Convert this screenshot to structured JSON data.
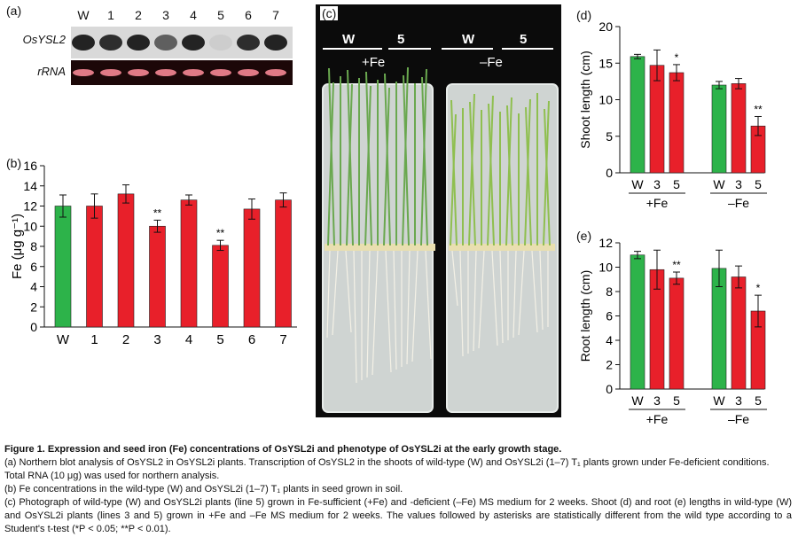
{
  "panel_a": {
    "label": "(a)",
    "lanes": [
      "W",
      "1",
      "2",
      "3",
      "4",
      "5",
      "6",
      "7"
    ],
    "row_labels": [
      "OsYSL2",
      "rRNA"
    ],
    "osysl2_band_intensity": [
      0.9,
      0.85,
      0.9,
      0.6,
      0.9,
      0.05,
      0.85,
      0.9
    ]
  },
  "panel_c": {
    "label": "(c)",
    "top_labels": [
      "W",
      "5",
      "W",
      "5"
    ],
    "conditions": [
      "+Fe",
      "–Fe"
    ]
  },
  "colors": {
    "wild_type": "#2db34a",
    "mutant": "#e8202a"
  },
  "chart_data": [
    {
      "id": "b",
      "label": "(b)",
      "type": "bar",
      "categories": [
        "W",
        "1",
        "2",
        "3",
        "4",
        "5",
        "6",
        "7"
      ],
      "values": [
        12.0,
        12.0,
        13.2,
        10.0,
        12.6,
        8.1,
        11.7,
        12.6
      ],
      "errors": [
        1.1,
        1.2,
        0.9,
        0.6,
        0.5,
        0.5,
        1.0,
        0.7
      ],
      "significance": [
        "",
        "",
        "",
        "**",
        "",
        "**",
        "",
        ""
      ],
      "ylabel": "Fe (μg g⁻¹)",
      "ylim": [
        0,
        16
      ],
      "yticks": [
        "0",
        "2",
        "4",
        "6",
        "8",
        "10",
        "12",
        "14",
        "16"
      ]
    },
    {
      "id": "d",
      "label": "(d)",
      "type": "bar",
      "groups": [
        "+Fe",
        "–Fe"
      ],
      "categories": [
        "W",
        "3",
        "5"
      ],
      "values": [
        [
          15.9,
          14.7,
          13.7
        ],
        [
          12.0,
          12.2,
          6.4
        ]
      ],
      "errors": [
        [
          0.3,
          2.1,
          1.1
        ],
        [
          0.5,
          0.7,
          1.3
        ]
      ],
      "significance": [
        [
          "",
          "",
          "*"
        ],
        [
          "",
          "",
          "**"
        ]
      ],
      "ylabel": "Shoot length (cm)",
      "ylim": [
        0,
        20
      ],
      "yticks": [
        "0",
        "5",
        "10",
        "15",
        "20"
      ]
    },
    {
      "id": "e",
      "label": "(e)",
      "type": "bar",
      "groups": [
        "+Fe",
        "–Fe"
      ],
      "categories": [
        "W",
        "3",
        "5"
      ],
      "values": [
        [
          11.0,
          9.8,
          9.1
        ],
        [
          9.9,
          9.2,
          6.4
        ]
      ],
      "errors": [
        [
          0.3,
          1.6,
          0.5
        ],
        [
          1.5,
          0.9,
          1.3
        ]
      ],
      "significance": [
        [
          "",
          "",
          "**"
        ],
        [
          "",
          "",
          "*"
        ]
      ],
      "ylabel": "Root length (cm)",
      "ylim": [
        0,
        12
      ],
      "yticks": [
        "0",
        "2",
        "4",
        "6",
        "8",
        "10",
        "12"
      ]
    }
  ],
  "caption": {
    "title": "Figure 1. Expression and seed iron (Fe) concentrations of OsYSL2i and phenotype of OsYSL2i at the early growth stage.",
    "a": "(a) Northern blot analysis of OsYSL2 in OsYSL2i plants. Transcription of OsYSL2 in the shoots of wild-type (W) and OsYSL2i (1–7) T₁ plants grown under Fe-deficient conditions. Total RNA (10 μg) was used for northern analysis.",
    "b": "(b) Fe concentrations in the wild-type (W) and OsYSL2i (1–7) T₁ plants in seed grown in soil.",
    "c": "(c) Photograph of wild-type (W) and OsYSL2i plants (line 5) grown in Fe-sufficient (+Fe) and -deficient (–Fe) MS medium for 2 weeks. Shoot (d) and root (e) lengths in wild-type (W) and OsYSL2i plants (lines 3 and 5) grown in +Fe and –Fe MS medium for 2 weeks. The values followed by asterisks are statistically different from the wild type according to a Student's t-test (*P < 0.05; **P < 0.01)."
  }
}
